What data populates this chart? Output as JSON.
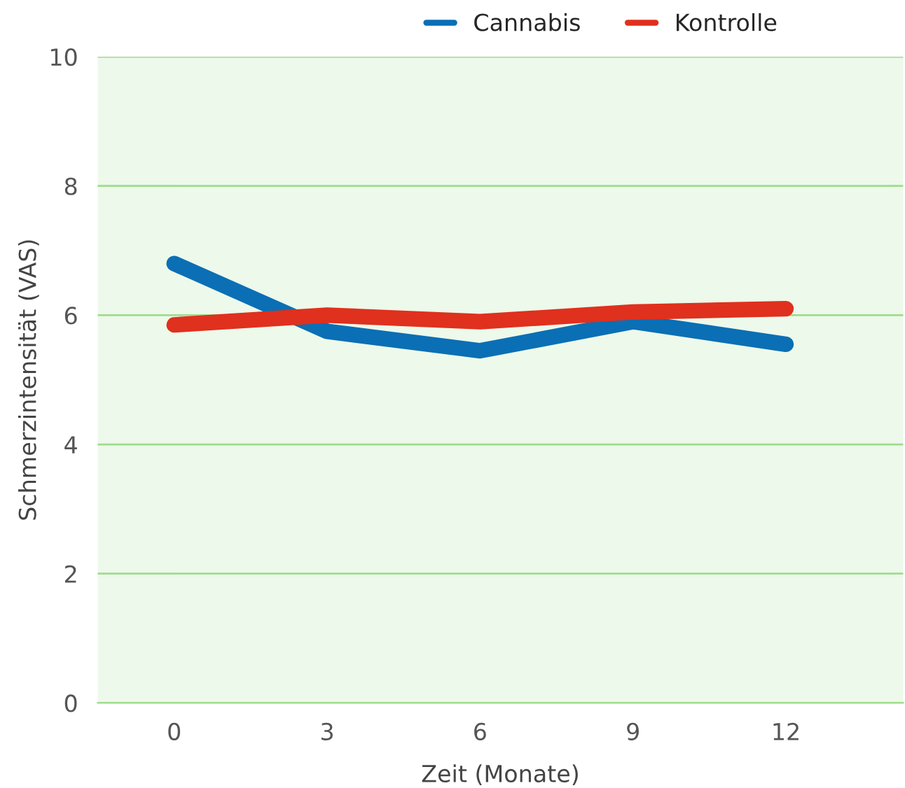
{
  "chart_data": {
    "type": "line",
    "xlabel": "Zeit (Monate)",
    "ylabel": "Schmerzintensität (VAS)",
    "x": [
      0,
      3,
      6,
      9,
      12
    ],
    "series": [
      {
        "name": "Cannabis",
        "color": "#0a6fb5",
        "values": [
          6.8,
          5.75,
          5.45,
          5.9,
          5.55
        ]
      },
      {
        "name": "Kontrolle",
        "color": "#e0301e",
        "values": [
          5.85,
          6.0,
          5.9,
          6.05,
          6.1
        ]
      }
    ],
    "xlim": [
      -1.5,
      14.3
    ],
    "xticks": [
      0,
      3,
      6,
      9,
      12
    ],
    "ylim": [
      0,
      10
    ],
    "yticks": [
      0,
      2,
      4,
      6,
      8,
      10
    ],
    "grid": "y",
    "legend": "top right",
    "marker": "none",
    "line_style": "solid"
  }
}
